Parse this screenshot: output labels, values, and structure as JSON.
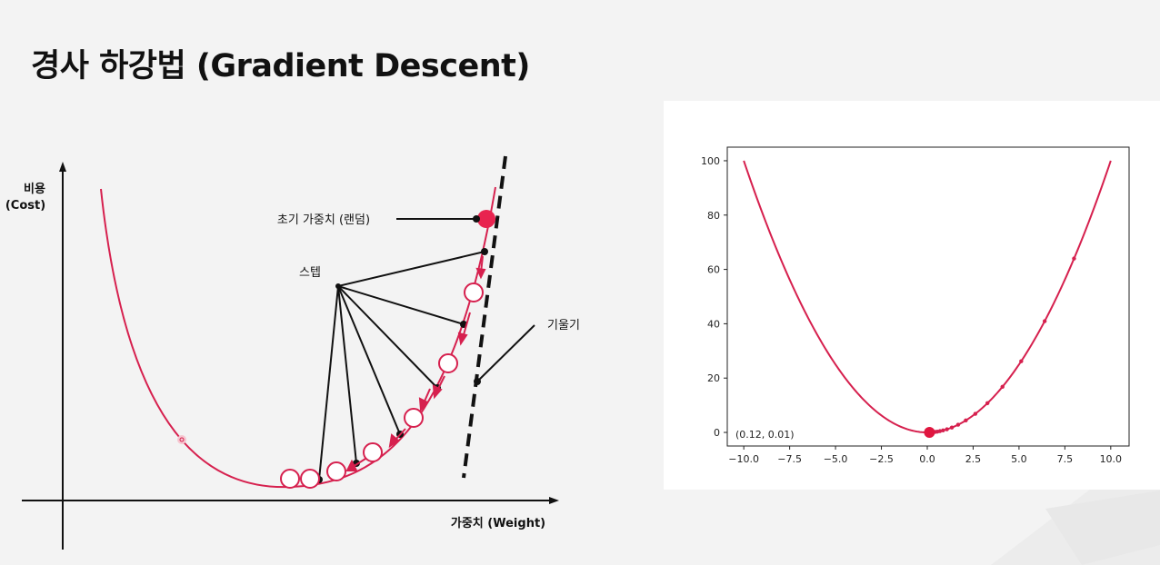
{
  "slide": {
    "title": "경사 하강법 (Gradient Descent)"
  },
  "diagram": {
    "y_axis_label_line1": "비용",
    "y_axis_label_line2": "(Cost)",
    "x_axis_label": "가중치 (Weight)",
    "initial_weight_label": "초기 가중치 (랜덤)",
    "step_label": "스텝",
    "slope_label": "기울기",
    "colors": {
      "curve": "#d6204e",
      "line": "#111111"
    }
  },
  "chart_data": {
    "type": "line",
    "function": "y = x^2",
    "x": [
      -10,
      -7.5,
      -5,
      -2.5,
      0,
      2.5,
      5,
      7.5,
      10
    ],
    "y": [
      100,
      56.25,
      25,
      6.25,
      0,
      6.25,
      25,
      56.25,
      100
    ],
    "descent_points_x": [
      8.0,
      6.4,
      5.12,
      4.1,
      3.28,
      2.62,
      2.1,
      1.68,
      1.34,
      1.07,
      0.86,
      0.69,
      0.55,
      0.44,
      0.35,
      0.28,
      0.22,
      0.18,
      0.14,
      0.12
    ],
    "final_point": {
      "x": 0.12,
      "y": 0.01
    },
    "annotation": "(0.12, 0.01)",
    "xlim": [
      -10.9,
      11
    ],
    "ylim": [
      -5,
      105
    ],
    "xticks": [
      "−10.0",
      "−7.5",
      "−5.0",
      "−2.5",
      "0.0",
      "2.5",
      "5.0",
      "7.5",
      "10.0"
    ],
    "xtick_values": [
      -10,
      -7.5,
      -5,
      -2.5,
      0,
      2.5,
      5,
      7.5,
      10
    ],
    "yticks": [
      "0",
      "20",
      "40",
      "60",
      "80",
      "100"
    ],
    "ytick_values": [
      0,
      20,
      40,
      60,
      80,
      100
    ],
    "grid": false,
    "color": "#d6204e"
  }
}
